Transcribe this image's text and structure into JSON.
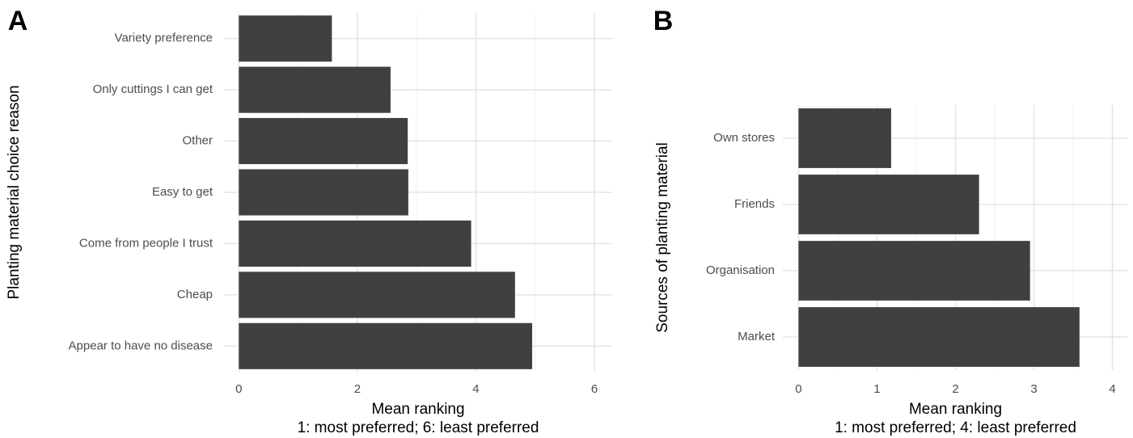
{
  "chart_data": [
    {
      "type": "bar",
      "orientation": "horizontal",
      "panel_label": "A",
      "categories": [
        "Variety preference",
        "Only cuttings I can get",
        "Other",
        "Easy to get",
        "Come from people I trust",
        "Cheap",
        "Appear to have no disease"
      ],
      "values": [
        1.57,
        2.56,
        2.85,
        2.86,
        3.92,
        4.66,
        4.95
      ],
      "color": "#404040",
      "ylabel": "Planting material choice reason",
      "xlabel": [
        "Mean ranking",
        "1: most preferred; 6: least preferred"
      ],
      "xlim": [
        -0.25,
        6.3
      ],
      "xticks": [
        0,
        2,
        4,
        6
      ],
      "x_minor_ticks": [
        1,
        3,
        5
      ],
      "grid": true
    },
    {
      "type": "bar",
      "orientation": "horizontal",
      "panel_label": "B",
      "categories": [
        "Own stores",
        "Friends",
        "Organisation",
        "Market"
      ],
      "values": [
        1.18,
        2.3,
        2.95,
        3.58
      ],
      "color": "#404040",
      "ylabel": "Sources of planting material",
      "xlabel": [
        "Mean ranking",
        "1: most preferred; 4: least preferred"
      ],
      "xlim": [
        -0.2,
        4.2
      ],
      "xticks": [
        0,
        1,
        2,
        3,
        4
      ],
      "x_minor_ticks": [
        0.5,
        1.5,
        2.5,
        3.5
      ],
      "grid": true
    }
  ]
}
